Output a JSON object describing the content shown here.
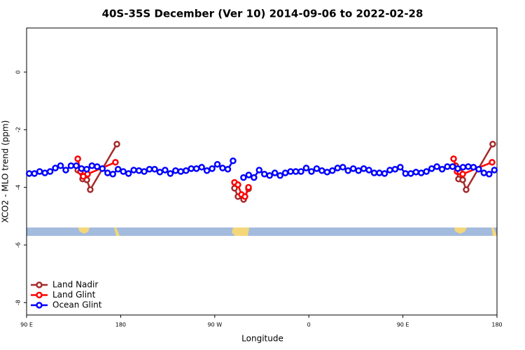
{
  "chart_data": {
    "type": "line",
    "title": "40S-35S December (Ver 10)   2014-09-06 to 2022-02-28",
    "x_label": "Longitude",
    "y_label": "XCO2 - MLO trend (ppm)",
    "xlim": [
      90,
      540
    ],
    "ylim": [
      -8.43,
      1.53
    ],
    "xticks": [
      {
        "value": 90,
        "label": "90 E"
      },
      180,
      {
        "value": 270,
        "label": "90 W"
      },
      {
        "value": 360,
        "label": "0"
      },
      {
        "value": 450,
        "label": "90 E"
      },
      {
        "value": 540,
        "label": "180"
      }
    ],
    "yticks": [
      0,
      -2,
      -4,
      -6,
      -8
    ],
    "legend": "bottom-left",
    "series": [
      {
        "name": "Land Nadir",
        "color": "#a52a2a",
        "x": [
          139,
          143.6,
          147.6,
          150.9,
          176.4,
          null,
          288.9,
          292.2,
          297.6,
          302.3,
          null,
          500.5,
          503.2,
          507.2,
          510.5,
          535.9
        ],
        "values": [
          -3.4,
          -3.71,
          -3.74,
          -4.08,
          -2.5,
          null,
          -4.03,
          -4.32,
          -4.42,
          -4.05,
          null,
          -3.25,
          -3.71,
          -3.74,
          -4.08,
          -2.5
        ]
      },
      {
        "name": "Land Glint",
        "color": "#ff0000",
        "x": [
          139,
          141.6,
          144.2,
          148.3,
          175,
          null,
          288.9,
          292.2,
          295.6,
          298.9,
          302.3,
          null,
          498.5,
          501.8,
          504.5,
          507.2,
          535.3
        ],
        "values": [
          -3.01,
          -3.45,
          -3.62,
          -3.54,
          -3.13,
          null,
          -3.83,
          -3.91,
          -4.25,
          -4.32,
          -4.0,
          null,
          -3.01,
          -3.45,
          -3.47,
          -3.54,
          -3.13
        ]
      },
      {
        "name": "Ocean Glint",
        "color": "#0000ff",
        "x": [
          92.5,
          97.5,
          102.5,
          107.5,
          112.5,
          117.5,
          122.5,
          127.5,
          132.5,
          137.5,
          142.5,
          147.5,
          152.5,
          157.5,
          162.5,
          167.5,
          172.5,
          177.5,
          182.5,
          187.5,
          192.5,
          197.5,
          202.5,
          207.5,
          212.5,
          217.5,
          222.5,
          227.5,
          232.5,
          237.5,
          242.5,
          247.5,
          252.5,
          257.5,
          262.5,
          267.5,
          272.5,
          277.5,
          282.5,
          287.5,
          null,
          297.5,
          302.5,
          307.5,
          312.5,
          317.5,
          322.5,
          327.5,
          332.5,
          337.5,
          342.5,
          347.5,
          352.5,
          357.5,
          362.5,
          367.5,
          372.5,
          377.5,
          382.5,
          387.5,
          392.5,
          397.5,
          402.5,
          407.5,
          412.5,
          417.5,
          422.5,
          427.5,
          432.5,
          437.5,
          442.5,
          447.5,
          452.5,
          457.5,
          462.5,
          467.5,
          472.5,
          477.5,
          482.5,
          487.5,
          492.5,
          497.5,
          502.5,
          507.5,
          512.5,
          517.5,
          522.5,
          527.5,
          532.5,
          537.5
        ],
        "values": [
          -3.52,
          -3.52,
          -3.45,
          -3.5,
          -3.45,
          -3.33,
          -3.25,
          -3.4,
          -3.25,
          -3.25,
          -3.35,
          -3.37,
          -3.25,
          -3.28,
          -3.35,
          -3.5,
          -3.54,
          -3.37,
          -3.45,
          -3.52,
          -3.4,
          -3.42,
          -3.45,
          -3.37,
          -3.37,
          -3.47,
          -3.4,
          -3.52,
          -3.42,
          -3.45,
          -3.42,
          -3.35,
          -3.35,
          -3.3,
          -3.42,
          -3.35,
          -3.2,
          -3.33,
          -3.37,
          -3.08,
          null,
          -3.66,
          -3.57,
          -3.66,
          -3.4,
          -3.54,
          -3.59,
          -3.5,
          -3.59,
          -3.5,
          -3.45,
          -3.45,
          -3.45,
          -3.33,
          -3.45,
          -3.35,
          -3.42,
          -3.47,
          -3.42,
          -3.33,
          -3.3,
          -3.42,
          -3.35,
          -3.42,
          -3.35,
          -3.4,
          -3.5,
          -3.5,
          -3.52,
          -3.4,
          -3.37,
          -3.3,
          -3.52,
          -3.52,
          -3.47,
          -3.5,
          -3.45,
          -3.35,
          -3.28,
          -3.37,
          -3.28,
          -3.28,
          -3.35,
          -3.3,
          -3.28,
          -3.3,
          -3.37,
          -3.5,
          -3.54,
          -3.4
        ]
      }
    ]
  }
}
